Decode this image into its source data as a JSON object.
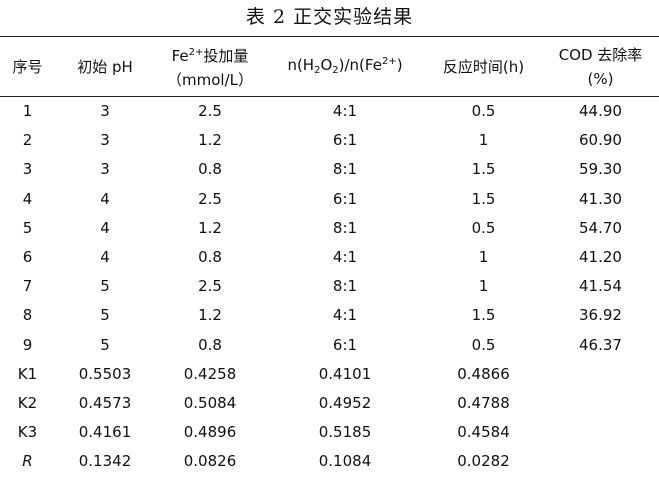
{
  "caption": "表 2  正交实验结果",
  "headers": {
    "col1": "序号",
    "col2": "初始 pH",
    "col3_line1_base": "Fe",
    "col3_line1_sup": "2+",
    "col3_line1_rest": "投加量",
    "col3_line2": "（mmol/L）",
    "col4_a": "n(H",
    "col4_sub1": "2",
    "col4_b": "O",
    "col4_sub2": "2",
    "col4_c": ")/n(Fe",
    "col4_sup": "2+",
    "col4_d": ")",
    "col5": "反应时间(h)",
    "col6_line1": "COD 去除率",
    "col6_line2": "(%)"
  },
  "rows": [
    [
      "1",
      "3",
      "2.5",
      "4:1",
      "0.5",
      "44.90"
    ],
    [
      "2",
      "3",
      "1.2",
      "6:1",
      "1",
      "60.90"
    ],
    [
      "3",
      "3",
      "0.8",
      "8:1",
      "1.5",
      "59.30"
    ],
    [
      "4",
      "4",
      "2.5",
      "6:1",
      "1.5",
      "41.30"
    ],
    [
      "5",
      "4",
      "1.2",
      "8:1",
      "0.5",
      "54.70"
    ],
    [
      "6",
      "4",
      "0.8",
      "4:1",
      "1",
      "41.20"
    ],
    [
      "7",
      "5",
      "2.5",
      "8:1",
      "1",
      "41.54"
    ],
    [
      "8",
      "5",
      "1.2",
      "4:1",
      "1.5",
      "36.92"
    ],
    [
      "9",
      "5",
      "0.8",
      "6:1",
      "0.5",
      "46.37"
    ],
    [
      "K1",
      "0.5503",
      "0.4258",
      "0.4101",
      "0.4866",
      ""
    ],
    [
      "K2",
      "0.4573",
      "0.5084",
      "0.4952",
      "0.4788",
      ""
    ],
    [
      "K3",
      "0.4161",
      "0.4896",
      "0.5185",
      "0.4584",
      ""
    ],
    [
      "R",
      "0.1342",
      "0.0826",
      "0.1084",
      "0.0282",
      ""
    ]
  ]
}
